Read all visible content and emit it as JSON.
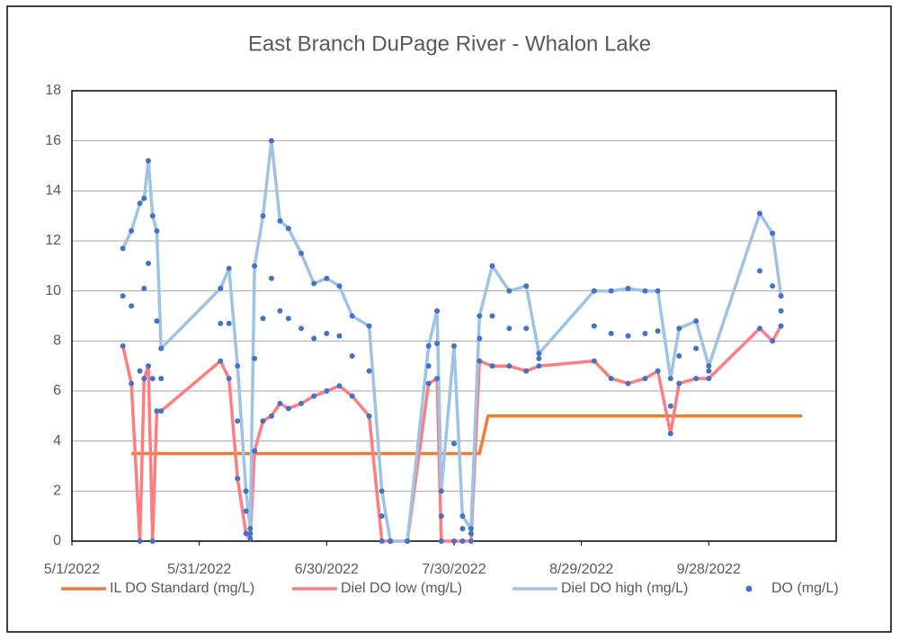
{
  "chart_data": {
    "type": "line",
    "title": "East Branch DuPage River - Whalon Lake",
    "xlim": [
      "2022-05-01",
      "2022-10-28"
    ],
    "xticks": [
      {
        "value": "2022-05-01",
        "label": "5/1/2022"
      },
      {
        "value": "2022-05-31",
        "label": "5/31/2022"
      },
      {
        "value": "2022-06-30",
        "label": "6/30/2022"
      },
      {
        "value": "2022-07-30",
        "label": "7/30/2022"
      },
      {
        "value": "2022-08-29",
        "label": "8/29/2022"
      },
      {
        "value": "2022-09-28",
        "label": "9/28/2022"
      }
    ],
    "ylim": [
      0,
      18
    ],
    "yticks": [
      0,
      2,
      4,
      6,
      8,
      10,
      12,
      14,
      16,
      18
    ],
    "grid": true,
    "legend": "bottom",
    "x": [
      "2022-05-13",
      "2022-05-15",
      "2022-05-17",
      "2022-05-18",
      "2022-05-19",
      "2022-05-20",
      "2022-05-21",
      "2022-05-22",
      "2022-06-05",
      "2022-06-07",
      "2022-06-09",
      "2022-06-11",
      "2022-06-12",
      "2022-06-13",
      "2022-06-15",
      "2022-06-17",
      "2022-06-19",
      "2022-06-21",
      "2022-06-24",
      "2022-06-27",
      "2022-06-30",
      "2022-07-03",
      "2022-07-06",
      "2022-07-10",
      "2022-07-13",
      "2022-07-15",
      "2022-07-19",
      "2022-07-24",
      "2022-07-26",
      "2022-07-27",
      "2022-07-30",
      "2022-08-01",
      "2022-08-03",
      "2022-08-05",
      "2022-08-08",
      "2022-08-12",
      "2022-08-16",
      "2022-08-19",
      "2022-09-01",
      "2022-09-05",
      "2022-09-09",
      "2022-09-13",
      "2022-09-16",
      "2022-09-19",
      "2022-09-21",
      "2022-09-25",
      "2022-09-28",
      "2022-10-10",
      "2022-10-13",
      "2022-10-15"
    ],
    "series": [
      {
        "name": "IL DO Standard (mg/L)",
        "color": "#ed7d31",
        "kind": "line",
        "width": 3.5,
        "x": [
          "2022-05-15",
          "2022-08-05",
          "2022-08-07",
          "2022-10-20"
        ],
        "values": [
          3.5,
          3.5,
          5,
          5
        ]
      },
      {
        "name": "Diel DO low (mg/L)",
        "color": "#ff7c80",
        "kind": "line",
        "width": 3.5,
        "values": [
          7.8,
          6.3,
          0,
          6.5,
          7,
          0,
          5.2,
          5.2,
          7.2,
          6.5,
          2.5,
          0.3,
          0.1,
          3.6,
          4.8,
          5,
          5.5,
          5.3,
          5.5,
          5.8,
          6,
          6.2,
          5.8,
          5,
          0,
          0,
          0,
          6.3,
          6.5,
          0,
          0,
          0,
          0,
          7.2,
          7,
          7,
          6.8,
          7,
          7.2,
          6.5,
          6.3,
          6.5,
          6.8,
          4.3,
          6.3,
          6.5,
          6.5,
          8.5,
          8,
          8.6
        ]
      },
      {
        "name": "Diel DO high (mg/L)",
        "color": "#9dc3e6",
        "kind": "line",
        "width": 3.5,
        "values": [
          11.7,
          12.4,
          13.5,
          13.7,
          15.2,
          13,
          12.4,
          7.7,
          10.1,
          10.9,
          7,
          2,
          0.5,
          11,
          13,
          16,
          12.8,
          12.5,
          11.5,
          10.3,
          10.5,
          10.2,
          9,
          8.6,
          2,
          0,
          0,
          7.8,
          9.2,
          2,
          7.8,
          1,
          0.5,
          9,
          11,
          10,
          10.2,
          7.5,
          10,
          10,
          10.1,
          10,
          10,
          6.5,
          8.5,
          8.8,
          7,
          13.1,
          12.3,
          9.8
        ]
      },
      {
        "name": "DO (mg/L)",
        "color": "#4472c4",
        "kind": "scatter",
        "x": [
          "2022-05-13",
          "2022-05-13",
          "2022-05-13",
          "2022-05-15",
          "2022-05-15",
          "2022-05-15",
          "2022-05-17",
          "2022-05-17",
          "2022-05-17",
          "2022-05-18",
          "2022-05-18",
          "2022-05-18",
          "2022-05-19",
          "2022-05-19",
          "2022-05-19",
          "2022-05-20",
          "2022-05-20",
          "2022-05-20",
          "2022-05-21",
          "2022-05-21",
          "2022-05-21",
          "2022-05-22",
          "2022-05-22",
          "2022-05-22",
          "2022-06-05",
          "2022-06-05",
          "2022-06-05",
          "2022-06-07",
          "2022-06-07",
          "2022-06-07",
          "2022-06-09",
          "2022-06-09",
          "2022-06-09",
          "2022-06-11",
          "2022-06-11",
          "2022-06-11",
          "2022-06-12",
          "2022-06-12",
          "2022-06-12",
          "2022-06-13",
          "2022-06-13",
          "2022-06-13",
          "2022-06-15",
          "2022-06-15",
          "2022-06-15",
          "2022-06-17",
          "2022-06-17",
          "2022-06-17",
          "2022-06-19",
          "2022-06-19",
          "2022-06-19",
          "2022-06-21",
          "2022-06-21",
          "2022-06-21",
          "2022-06-24",
          "2022-06-24",
          "2022-06-24",
          "2022-06-27",
          "2022-06-27",
          "2022-06-27",
          "2022-06-30",
          "2022-06-30",
          "2022-06-30",
          "2022-07-03",
          "2022-07-03",
          "2022-07-03",
          "2022-07-06",
          "2022-07-06",
          "2022-07-06",
          "2022-07-10",
          "2022-07-10",
          "2022-07-10",
          "2022-07-13",
          "2022-07-13",
          "2022-07-13",
          "2022-07-15",
          "2022-07-15",
          "2022-07-15",
          "2022-07-19",
          "2022-07-19",
          "2022-07-19",
          "2022-07-24",
          "2022-07-24",
          "2022-07-24",
          "2022-07-26",
          "2022-07-26",
          "2022-07-26",
          "2022-07-27",
          "2022-07-27",
          "2022-07-27",
          "2022-07-30",
          "2022-07-30",
          "2022-07-30",
          "2022-08-01",
          "2022-08-01",
          "2022-08-01",
          "2022-08-03",
          "2022-08-03",
          "2022-08-03",
          "2022-08-05",
          "2022-08-05",
          "2022-08-05",
          "2022-08-08",
          "2022-08-08",
          "2022-08-08",
          "2022-08-12",
          "2022-08-12",
          "2022-08-12",
          "2022-08-16",
          "2022-08-16",
          "2022-08-16",
          "2022-08-19",
          "2022-08-19",
          "2022-08-19",
          "2022-09-01",
          "2022-09-01",
          "2022-09-01",
          "2022-09-05",
          "2022-09-05",
          "2022-09-05",
          "2022-09-09",
          "2022-09-09",
          "2022-09-09",
          "2022-09-13",
          "2022-09-13",
          "2022-09-13",
          "2022-09-16",
          "2022-09-16",
          "2022-09-16",
          "2022-09-19",
          "2022-09-19",
          "2022-09-19",
          "2022-09-21",
          "2022-09-21",
          "2022-09-21",
          "2022-09-25",
          "2022-09-25",
          "2022-09-25",
          "2022-09-28",
          "2022-09-28",
          "2022-09-28",
          "2022-10-10",
          "2022-10-10",
          "2022-10-10",
          "2022-10-13",
          "2022-10-13",
          "2022-10-13",
          "2022-10-15",
          "2022-10-15",
          "2022-10-15"
        ],
        "values": [
          7.8,
          9.8,
          11.7,
          6.3,
          9.4,
          12.4,
          0,
          6.8,
          13.5,
          6.5,
          10.1,
          13.7,
          7,
          11.1,
          15.2,
          0,
          6.5,
          13,
          5.2,
          8.8,
          12.4,
          5.2,
          6.5,
          7.7,
          7.2,
          8.7,
          10.1,
          6.5,
          8.7,
          10.9,
          2.5,
          4.8,
          7,
          0.3,
          1.2,
          2,
          0.1,
          0.3,
          0.5,
          3.6,
          7.3,
          11,
          4.8,
          8.9,
          13,
          5,
          10.5,
          16,
          5.5,
          9.2,
          12.8,
          5.3,
          8.9,
          12.5,
          5.5,
          8.5,
          11.5,
          5.8,
          8.1,
          10.3,
          6,
          8.3,
          10.5,
          6.2,
          8.2,
          10.2,
          5.8,
          7.4,
          9,
          5,
          6.8,
          8.6,
          0,
          1,
          2,
          0,
          0,
          0,
          0,
          0,
          0,
          6.3,
          7,
          7.8,
          6.5,
          7.9,
          9.2,
          0,
          1,
          2,
          0,
          3.9,
          7.8,
          0,
          0.5,
          1,
          0,
          0.3,
          0.5,
          7.2,
          8.1,
          9,
          7,
          9,
          11,
          7,
          8.5,
          10,
          6.8,
          8.5,
          10.2,
          7,
          7.3,
          7.5,
          7.2,
          8.6,
          10,
          6.5,
          8.3,
          10,
          6.3,
          8.2,
          10.1,
          6.5,
          8.3,
          10,
          6.8,
          8.4,
          10,
          4.3,
          5.4,
          6.5,
          6.3,
          7.4,
          8.5,
          6.5,
          7.7,
          8.8,
          6.5,
          6.8,
          7,
          8.5,
          10.8,
          13.1,
          8,
          10.2,
          12.3,
          8.6,
          9.2,
          9.8
        ]
      }
    ]
  }
}
